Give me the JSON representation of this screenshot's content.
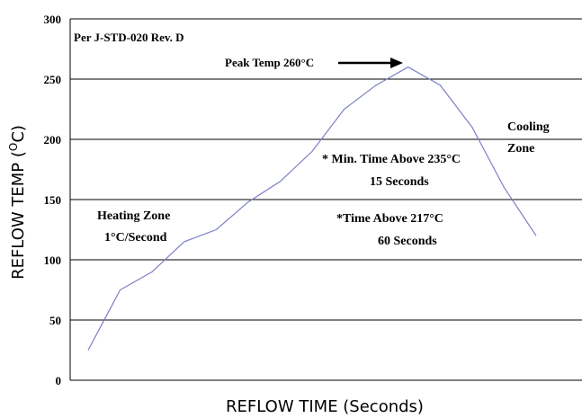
{
  "chart_data": {
    "type": "line",
    "ylabel": "REFLOW TEMP (°C)",
    "xlabel": "REFLOW TIME (Seconds)",
    "ylim": [
      0,
      300
    ],
    "y_ticks": [
      0,
      50,
      100,
      150,
      200,
      250,
      300
    ],
    "grid": "horizontal",
    "series": [
      {
        "values": [
          25,
          75,
          90,
          115,
          125,
          148,
          165,
          190,
          225,
          245,
          260,
          245,
          210,
          160,
          120
        ]
      }
    ],
    "annotations": {
      "standard": "Per J-STD-020 Rev. D",
      "peak": "Peak Temp 260°C",
      "heating_line1": "Heating Zone",
      "heating_line2": "1°C/Second",
      "min_time_line1": "* Min. Time Above 235°C",
      "min_time_line2": "15 Seconds",
      "time_above_line1": "*Time Above 217°C",
      "time_above_line2": "60 Seconds",
      "cooling_line1": "Cooling",
      "cooling_line2": "Zone"
    },
    "line_color": "#7b7fc4"
  }
}
